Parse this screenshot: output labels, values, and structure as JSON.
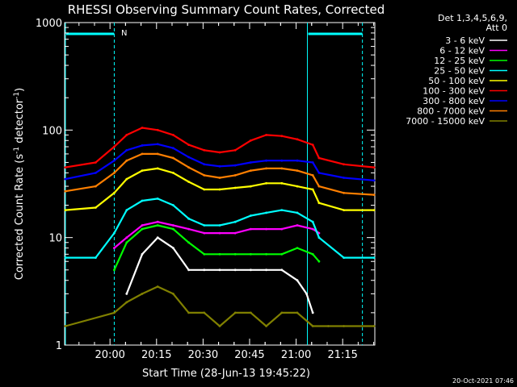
{
  "chart_data": {
    "type": "line",
    "title": "RHESSI Observing Summary Count Rates, Corrected",
    "xlabel": "Start Time (28-Jun-13 19:45:22)",
    "ylabel_main": "Corrected Count Rate (s",
    "ylabel_sup1": "-1",
    "ylabel_mid": " detector",
    "ylabel_sup2": "-1",
    "ylabel_end": ")",
    "yscale": "log",
    "ylim": [
      1,
      1000
    ],
    "xlim_minutes": [
      0,
      100
    ],
    "x_ticks": [
      "20:00",
      "20:15",
      "20:30",
      "20:45",
      "21:00",
      "21:15"
    ],
    "x_tick_minutes": [
      14.63,
      29.63,
      44.63,
      59.63,
      74.63,
      89.63
    ],
    "y_tick_labels": [
      "1",
      "10",
      "100",
      "1000"
    ],
    "y_tick_values": [
      1,
      10,
      100,
      1000
    ],
    "legend_header": [
      "Det 1,3,4,5,6,9,",
      "Att 0"
    ],
    "footer_date": "20-Oct-2021 07:46",
    "night_marker": "N",
    "intervals": {
      "night_bars": [
        [
          0,
          16
        ],
        [
          78,
          96
        ]
      ],
      "dashed_lines": [
        16,
        96
      ],
      "solid_lines": [
        0,
        78
      ]
    },
    "series": [
      {
        "name": "3 - 6 keV",
        "color": "#ffffff",
        "x": [
          0,
          16,
          20,
          25,
          30,
          35,
          40,
          45,
          50,
          55,
          60,
          65,
          70,
          75,
          78,
          80,
          82
        ],
        "values": [
          null,
          null,
          3,
          7,
          10,
          8,
          5,
          5,
          5,
          5,
          5,
          5,
          5,
          4,
          3,
          2,
          null
        ]
      },
      {
        "name": "6 - 12 keV",
        "color": "#ff00ff",
        "x": [
          16,
          20,
          25,
          30,
          35,
          40,
          45,
          50,
          55,
          60,
          65,
          70,
          75,
          80,
          82
        ],
        "values": [
          8,
          10,
          13,
          14,
          13,
          12,
          11,
          11,
          11,
          12,
          12,
          12,
          13,
          12,
          11
        ]
      },
      {
        "name": "12 - 25 keV",
        "color": "#00ff00",
        "x": [
          16,
          20,
          25,
          30,
          35,
          40,
          45,
          50,
          55,
          60,
          65,
          70,
          75,
          80,
          82
        ],
        "values": [
          5,
          9,
          12,
          13,
          12,
          9,
          7,
          7,
          7,
          7,
          7,
          7,
          8,
          7,
          6
        ]
      },
      {
        "name": "25 - 50 keV",
        "color": "#00ffff",
        "x": [
          0,
          10,
          16,
          20,
          25,
          30,
          35,
          40,
          45,
          50,
          55,
          60,
          65,
          70,
          75,
          80,
          82,
          90,
          100
        ],
        "values": [
          6.5,
          6.5,
          11,
          18,
          22,
          23,
          20,
          15,
          13,
          13,
          14,
          16,
          17,
          18,
          17,
          14,
          10,
          6.5,
          6.5
        ]
      },
      {
        "name": "50 - 100 keV",
        "color": "#ffff00",
        "x": [
          0,
          10,
          16,
          20,
          25,
          30,
          35,
          40,
          45,
          50,
          55,
          60,
          65,
          70,
          75,
          80,
          82,
          90,
          100
        ],
        "values": [
          18,
          19,
          26,
          35,
          42,
          44,
          40,
          33,
          28,
          28,
          29,
          30,
          32,
          32,
          30,
          28,
          21,
          18,
          18
        ]
      },
      {
        "name": "100 - 300 keV",
        "color": "#ff0000",
        "x": [
          0,
          10,
          16,
          20,
          25,
          30,
          35,
          40,
          45,
          50,
          55,
          60,
          65,
          70,
          75,
          80,
          82,
          90,
          100
        ],
        "values": [
          45,
          50,
          70,
          90,
          105,
          100,
          90,
          73,
          65,
          62,
          65,
          80,
          90,
          88,
          82,
          73,
          55,
          48,
          45
        ]
      },
      {
        "name": "300 - 800 keV",
        "color": "#0000ff",
        "x": [
          0,
          10,
          16,
          20,
          25,
          30,
          35,
          40,
          45,
          50,
          55,
          60,
          65,
          70,
          75,
          80,
          82,
          90,
          100
        ],
        "values": [
          35,
          40,
          52,
          65,
          72,
          74,
          68,
          56,
          48,
          46,
          47,
          50,
          52,
          52,
          52,
          50,
          40,
          36,
          34
        ]
      },
      {
        "name": "800 - 7000 keV",
        "color": "#ff7f00",
        "x": [
          0,
          10,
          16,
          20,
          25,
          30,
          35,
          40,
          45,
          50,
          55,
          60,
          65,
          70,
          75,
          80,
          82,
          90,
          100
        ],
        "values": [
          27,
          30,
          40,
          52,
          60,
          60,
          55,
          45,
          38,
          36,
          38,
          42,
          44,
          44,
          42,
          38,
          30,
          26,
          25
        ]
      },
      {
        "name": "7000 - 15000 keV",
        "color": "#808000",
        "x": [
          0,
          16,
          20,
          25,
          30,
          35,
          40,
          45,
          50,
          55,
          60,
          65,
          70,
          75,
          80,
          85,
          90,
          100
        ],
        "values": [
          1.5,
          2,
          2.5,
          3,
          3.5,
          3,
          2,
          2,
          1.5,
          2,
          2,
          1.5,
          2,
          2,
          1.5,
          1.5,
          1.5,
          1.5
        ]
      }
    ]
  }
}
